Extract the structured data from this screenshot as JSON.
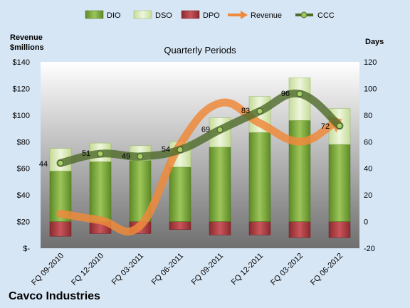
{
  "chart_data": {
    "type": "bar",
    "subtitle": "Quarterly Periods",
    "company": "Cavco Industries",
    "y_left_label": [
      "Revenue",
      "$millions"
    ],
    "y_right_label": "Days",
    "y_left_ticks": [
      "$-",
      "$20",
      "$40",
      "$60",
      "$80",
      "$100",
      "$120",
      "$140"
    ],
    "y_right_ticks": [
      "-20",
      "0",
      "20",
      "40",
      "60",
      "80",
      "100",
      "120"
    ],
    "ylim_left": [
      0,
      140
    ],
    "ylim_right": [
      -20,
      120
    ],
    "categories": [
      "FQ 09-2010",
      "FQ 12-2010",
      "FQ 03-2011",
      "FQ 06-2011",
      "FQ 09-2011",
      "FQ 12-2011",
      "FQ 03-2012",
      "FQ 06-2012"
    ],
    "series": [
      {
        "name": "DIO",
        "kind": "bar",
        "axis": "right",
        "values": [
          38,
          45,
          46,
          41,
          56,
          67,
          76,
          58
        ],
        "color": "#7aa83a"
      },
      {
        "name": "DSO",
        "kind": "bar-stack",
        "axis": "right",
        "values": [
          17,
          14,
          11,
          19,
          22,
          27,
          32,
          27
        ],
        "color": "#d6e8b4"
      },
      {
        "name": "DPO",
        "kind": "bar-negative",
        "axis": "right",
        "values": [
          -11,
          -9,
          -9,
          -6,
          -10,
          -10,
          -12,
          -12
        ],
        "color": "#b03a3e"
      },
      {
        "name": "Revenue",
        "kind": "line",
        "axis": "left",
        "values": [
          26,
          21,
          17,
          78,
          109,
          94,
          80,
          96
        ],
        "color": "#ef8a3c"
      },
      {
        "name": "CCC",
        "kind": "line",
        "axis": "right",
        "values": [
          44,
          51,
          49,
          54,
          69,
          83,
          96,
          72
        ],
        "color": "#4e6a2a"
      }
    ],
    "ccc_labels": [
      "44",
      "51",
      "49",
      "54",
      "69",
      "83",
      "96",
      "72"
    ],
    "legend": [
      "DIO",
      "DSO",
      "DPO",
      "Revenue",
      "CCC"
    ],
    "legend_position": "top",
    "grid": false
  }
}
